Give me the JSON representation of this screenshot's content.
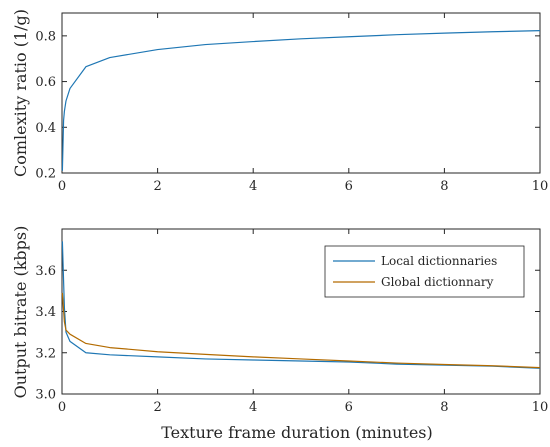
{
  "chart_data": [
    {
      "type": "line",
      "xlabel": "",
      "ylabel": "Comlexity ratio (1/g)",
      "xlim": [
        0,
        10
      ],
      "ylim": [
        0.2,
        0.9
      ],
      "xticks": [
        0,
        2,
        4,
        6,
        8,
        10
      ],
      "yticks": [
        0.2,
        0.4,
        0.6,
        0.8
      ],
      "grid": false,
      "series": [
        {
          "color": "#1f77b4",
          "x": [
            0.008,
            0.033,
            0.05,
            0.083,
            0.167,
            0.5,
            1,
            2,
            3,
            4,
            5,
            6,
            7,
            8,
            9,
            10
          ],
          "y": [
            0.21,
            0.43,
            0.47,
            0.515,
            0.57,
            0.665,
            0.705,
            0.74,
            0.762,
            0.775,
            0.787,
            0.796,
            0.805,
            0.812,
            0.818,
            0.823
          ]
        }
      ]
    },
    {
      "type": "line",
      "xlabel": "Texture frame duration (minutes)",
      "ylabel": "Output bitrate (kbps)",
      "xlim": [
        0,
        10
      ],
      "ylim": [
        3.0,
        3.8
      ],
      "xticks": [
        0,
        2,
        4,
        6,
        8,
        10
      ],
      "yticks": [
        3.0,
        3.2,
        3.4,
        3.6
      ],
      "grid": false,
      "legend_position": "top-right",
      "series": [
        {
          "name": "Local dictionnaries",
          "color": "#1f77b4",
          "x": [
            0.008,
            0.05,
            0.083,
            0.167,
            0.5,
            1,
            2,
            3,
            4,
            5,
            6,
            7,
            8,
            9,
            10
          ],
          "y": [
            3.74,
            3.42,
            3.3,
            3.255,
            3.2,
            3.19,
            3.18,
            3.17,
            3.165,
            3.16,
            3.155,
            3.145,
            3.14,
            3.135,
            3.125
          ]
        },
        {
          "name": "Global dictionnary",
          "color": "#b36b00",
          "x": [
            0.008,
            0.05,
            0.083,
            0.167,
            0.5,
            1,
            2,
            3,
            4,
            5,
            6,
            7,
            8,
            9,
            10
          ],
          "y": [
            3.49,
            3.35,
            3.31,
            3.29,
            3.245,
            3.225,
            3.205,
            3.192,
            3.18,
            3.17,
            3.16,
            3.15,
            3.143,
            3.137,
            3.128
          ]
        }
      ]
    }
  ]
}
